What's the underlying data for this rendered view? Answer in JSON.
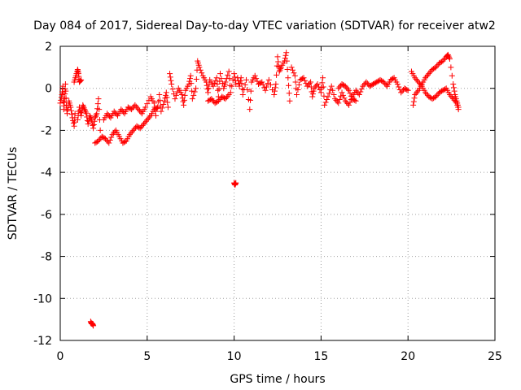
{
  "chart_data": {
    "type": "scatter",
    "title": "Day 084 of 2017, Sidereal Day-to-day VTEC variation (SDTVAR) for receiver atw2",
    "xlabel": "GPS time / hours",
    "ylabel": "SDTVAR / TECUs",
    "xlim": [
      0,
      25
    ],
    "ylim": [
      -12,
      2
    ],
    "xticks": [
      0,
      5,
      10,
      15,
      20,
      25
    ],
    "xtick_labels": [
      "0",
      "5",
      "10",
      "15",
      "20",
      "25"
    ],
    "yticks": [
      2,
      0,
      -2,
      -4,
      -6,
      -8,
      -10,
      -12
    ],
    "ytick_labels": [
      "2",
      "0",
      "-2",
      "-4",
      "-6",
      "-8",
      "-10",
      "-12"
    ],
    "grid": true,
    "marker": "+",
    "color": "#ff0000",
    "series": [
      {
        "name": "SDTVAR",
        "points": [
          [
            0.0,
            -0.7
          ],
          [
            0.1,
            -0.3
          ],
          [
            0.15,
            0.1
          ],
          [
            0.2,
            -1.0
          ],
          [
            0.25,
            -0.5
          ],
          [
            0.3,
            0.2
          ],
          [
            0.35,
            -0.8
          ],
          [
            0.4,
            -1.2
          ],
          [
            0.5,
            -0.6
          ],
          [
            0.6,
            -0.9
          ],
          [
            0.7,
            -1.4
          ],
          [
            0.8,
            -1.8
          ],
          [
            0.85,
            -1.2
          ],
          [
            0.8,
            0.3
          ],
          [
            0.9,
            0.6
          ],
          [
            1.0,
            0.9
          ],
          [
            1.05,
            0.7
          ],
          [
            1.1,
            0.3
          ],
          [
            1.2,
            0.4
          ],
          [
            1.0,
            -1.5
          ],
          [
            1.1,
            -0.9
          ],
          [
            1.2,
            -1.3
          ],
          [
            1.3,
            -0.8
          ],
          [
            1.4,
            -1.0
          ],
          [
            1.5,
            -1.2
          ],
          [
            1.6,
            -1.7
          ],
          [
            1.7,
            -1.3
          ],
          [
            1.8,
            -1.5
          ],
          [
            1.9,
            -1.9
          ],
          [
            2.0,
            -1.4
          ],
          [
            2.1,
            -1.2
          ],
          [
            2.2,
            -0.5
          ],
          [
            2.3,
            -2.0
          ],
          [
            2.0,
            -2.6
          ],
          [
            2.2,
            -2.5
          ],
          [
            2.4,
            -2.3
          ],
          [
            2.6,
            -2.4
          ],
          [
            2.8,
            -2.6
          ],
          [
            3.0,
            -2.2
          ],
          [
            3.2,
            -2.0
          ],
          [
            3.4,
            -2.3
          ],
          [
            3.6,
            -2.6
          ],
          [
            3.8,
            -2.5
          ],
          [
            4.0,
            -2.2
          ],
          [
            4.2,
            -2.0
          ],
          [
            4.4,
            -1.8
          ],
          [
            4.6,
            -1.9
          ],
          [
            4.8,
            -1.7
          ],
          [
            5.0,
            -1.5
          ],
          [
            5.2,
            -1.3
          ],
          [
            5.4,
            -1.0
          ],
          [
            5.6,
            -0.9
          ],
          [
            2.5,
            -1.5
          ],
          [
            2.7,
            -1.2
          ],
          [
            2.9,
            -1.4
          ],
          [
            3.1,
            -1.1
          ],
          [
            3.3,
            -1.3
          ],
          [
            3.5,
            -1.0
          ],
          [
            3.7,
            -1.2
          ],
          [
            3.9,
            -0.9
          ],
          [
            4.1,
            -1.0
          ],
          [
            4.3,
            -0.8
          ],
          [
            4.5,
            -1.0
          ],
          [
            4.7,
            -1.2
          ],
          [
            4.9,
            -0.9
          ],
          [
            5.2,
            -0.4
          ],
          [
            5.4,
            -0.7
          ],
          [
            5.5,
            -1.3
          ],
          [
            5.7,
            -0.3
          ],
          [
            5.8,
            -1.1
          ],
          [
            6.0,
            -0.6
          ],
          [
            6.1,
            -0.2
          ],
          [
            6.2,
            -0.9
          ],
          [
            6.3,
            0.7
          ],
          [
            6.4,
            0.2
          ],
          [
            6.6,
            -0.5
          ],
          [
            6.8,
            0.0
          ],
          [
            7.0,
            -0.3
          ],
          [
            7.1,
            -0.8
          ],
          [
            7.2,
            -0.1
          ],
          [
            7.4,
            0.2
          ],
          [
            7.5,
            0.6
          ],
          [
            7.6,
            -0.5
          ],
          [
            7.8,
            0.0
          ],
          [
            7.9,
            1.3
          ],
          [
            8.0,
            1.0
          ],
          [
            8.2,
            0.6
          ],
          [
            8.4,
            0.3
          ],
          [
            8.5,
            -0.2
          ],
          [
            8.6,
            0.4
          ],
          [
            8.8,
            0.1
          ],
          [
            9.0,
            0.5
          ],
          [
            9.1,
            -0.4
          ],
          [
            9.2,
            0.7
          ],
          [
            9.4,
            0.0
          ],
          [
            9.5,
            0.3
          ],
          [
            9.7,
            0.8
          ],
          [
            9.8,
            -0.2
          ],
          [
            10.0,
            0.7
          ],
          [
            10.1,
            0.2
          ],
          [
            8.5,
            -0.6
          ],
          [
            8.7,
            -0.5
          ],
          [
            8.9,
            -0.7
          ],
          [
            9.1,
            -0.6
          ],
          [
            9.3,
            -0.4
          ],
          [
            9.5,
            -0.5
          ],
          [
            9.7,
            -0.3
          ],
          [
            10.0,
            -4.5
          ],
          [
            10.05,
            -4.6
          ],
          [
            10.1,
            -4.5
          ],
          [
            10.2,
            0.5
          ],
          [
            10.3,
            0.1
          ],
          [
            10.4,
            0.5
          ],
          [
            10.5,
            -0.3
          ],
          [
            10.7,
            0.4
          ],
          [
            10.9,
            -1.0
          ],
          [
            11.0,
            0.3
          ],
          [
            11.2,
            0.6
          ],
          [
            11.4,
            0.2
          ],
          [
            11.6,
            0.3
          ],
          [
            11.8,
            -0.1
          ],
          [
            12.0,
            0.4
          ],
          [
            12.3,
            -0.3
          ],
          [
            12.4,
            0.2
          ],
          [
            12.5,
            1.5
          ],
          [
            12.6,
            0.8
          ],
          [
            12.7,
            1.0
          ],
          [
            12.9,
            1.3
          ],
          [
            13.0,
            1.7
          ],
          [
            13.1,
            0.5
          ],
          [
            13.2,
            -0.6
          ],
          [
            13.3,
            1.0
          ],
          [
            13.5,
            0.6
          ],
          [
            13.6,
            -0.3
          ],
          [
            13.8,
            0.4
          ],
          [
            14.0,
            0.5
          ],
          [
            14.2,
            0.1
          ],
          [
            14.4,
            0.3
          ],
          [
            14.5,
            -0.4
          ],
          [
            14.6,
            0.0
          ],
          [
            14.8,
            0.2
          ],
          [
            15.0,
            -0.2
          ],
          [
            15.1,
            0.5
          ],
          [
            15.2,
            -0.8
          ],
          [
            15.4,
            -0.4
          ],
          [
            15.6,
            0.1
          ],
          [
            15.8,
            -0.5
          ],
          [
            16.0,
            -0.7
          ],
          [
            16.2,
            -0.2
          ],
          [
            16.4,
            -0.6
          ],
          [
            16.6,
            -0.8
          ],
          [
            16.8,
            -0.4
          ],
          [
            17.0,
            -0.1
          ],
          [
            17.2,
            -0.3
          ],
          [
            17.4,
            0.1
          ],
          [
            17.6,
            0.3
          ],
          [
            17.8,
            0.1
          ],
          [
            18.0,
            0.2
          ],
          [
            18.2,
            0.3
          ],
          [
            18.4,
            0.4
          ],
          [
            18.6,
            0.3
          ],
          [
            18.8,
            0.1
          ],
          [
            19.0,
            0.4
          ],
          [
            19.2,
            0.5
          ],
          [
            19.4,
            0.2
          ],
          [
            19.6,
            -0.2
          ],
          [
            19.8,
            0.0
          ],
          [
            20.0,
            -0.1
          ],
          [
            16.0,
            0.0
          ],
          [
            16.2,
            0.2
          ],
          [
            16.4,
            0.1
          ],
          [
            16.6,
            -0.1
          ],
          [
            16.8,
            -0.5
          ],
          [
            17.0,
            -0.6
          ],
          [
            20.2,
            0.8
          ],
          [
            20.4,
            0.5
          ],
          [
            20.6,
            0.3
          ],
          [
            20.8,
            0.1
          ],
          [
            21.0,
            -0.2
          ],
          [
            21.2,
            -0.4
          ],
          [
            21.4,
            -0.5
          ],
          [
            21.6,
            -0.4
          ],
          [
            21.8,
            -0.2
          ],
          [
            22.0,
            -0.1
          ],
          [
            22.2,
            0.0
          ],
          [
            22.4,
            -0.3
          ],
          [
            22.6,
            -0.5
          ],
          [
            22.8,
            -0.7
          ],
          [
            22.9,
            -1.0
          ],
          [
            20.3,
            -0.8
          ],
          [
            20.4,
            -0.3
          ],
          [
            20.6,
            -0.1
          ],
          [
            20.8,
            0.2
          ],
          [
            21.0,
            0.5
          ],
          [
            21.2,
            0.7
          ],
          [
            21.4,
            0.9
          ],
          [
            21.6,
            1.0
          ],
          [
            21.8,
            1.2
          ],
          [
            22.0,
            1.3
          ],
          [
            22.2,
            1.5
          ],
          [
            22.3,
            1.6
          ],
          [
            22.4,
            1.4
          ],
          [
            22.6,
            0.2
          ],
          [
            22.7,
            -0.3
          ],
          [
            22.8,
            -0.6
          ],
          [
            22.9,
            -0.9
          ],
          [
            1.75,
            -11.1
          ],
          [
            1.8,
            -11.2
          ],
          [
            1.85,
            -11.2
          ],
          [
            1.9,
            -11.3
          ]
        ]
      }
    ]
  }
}
